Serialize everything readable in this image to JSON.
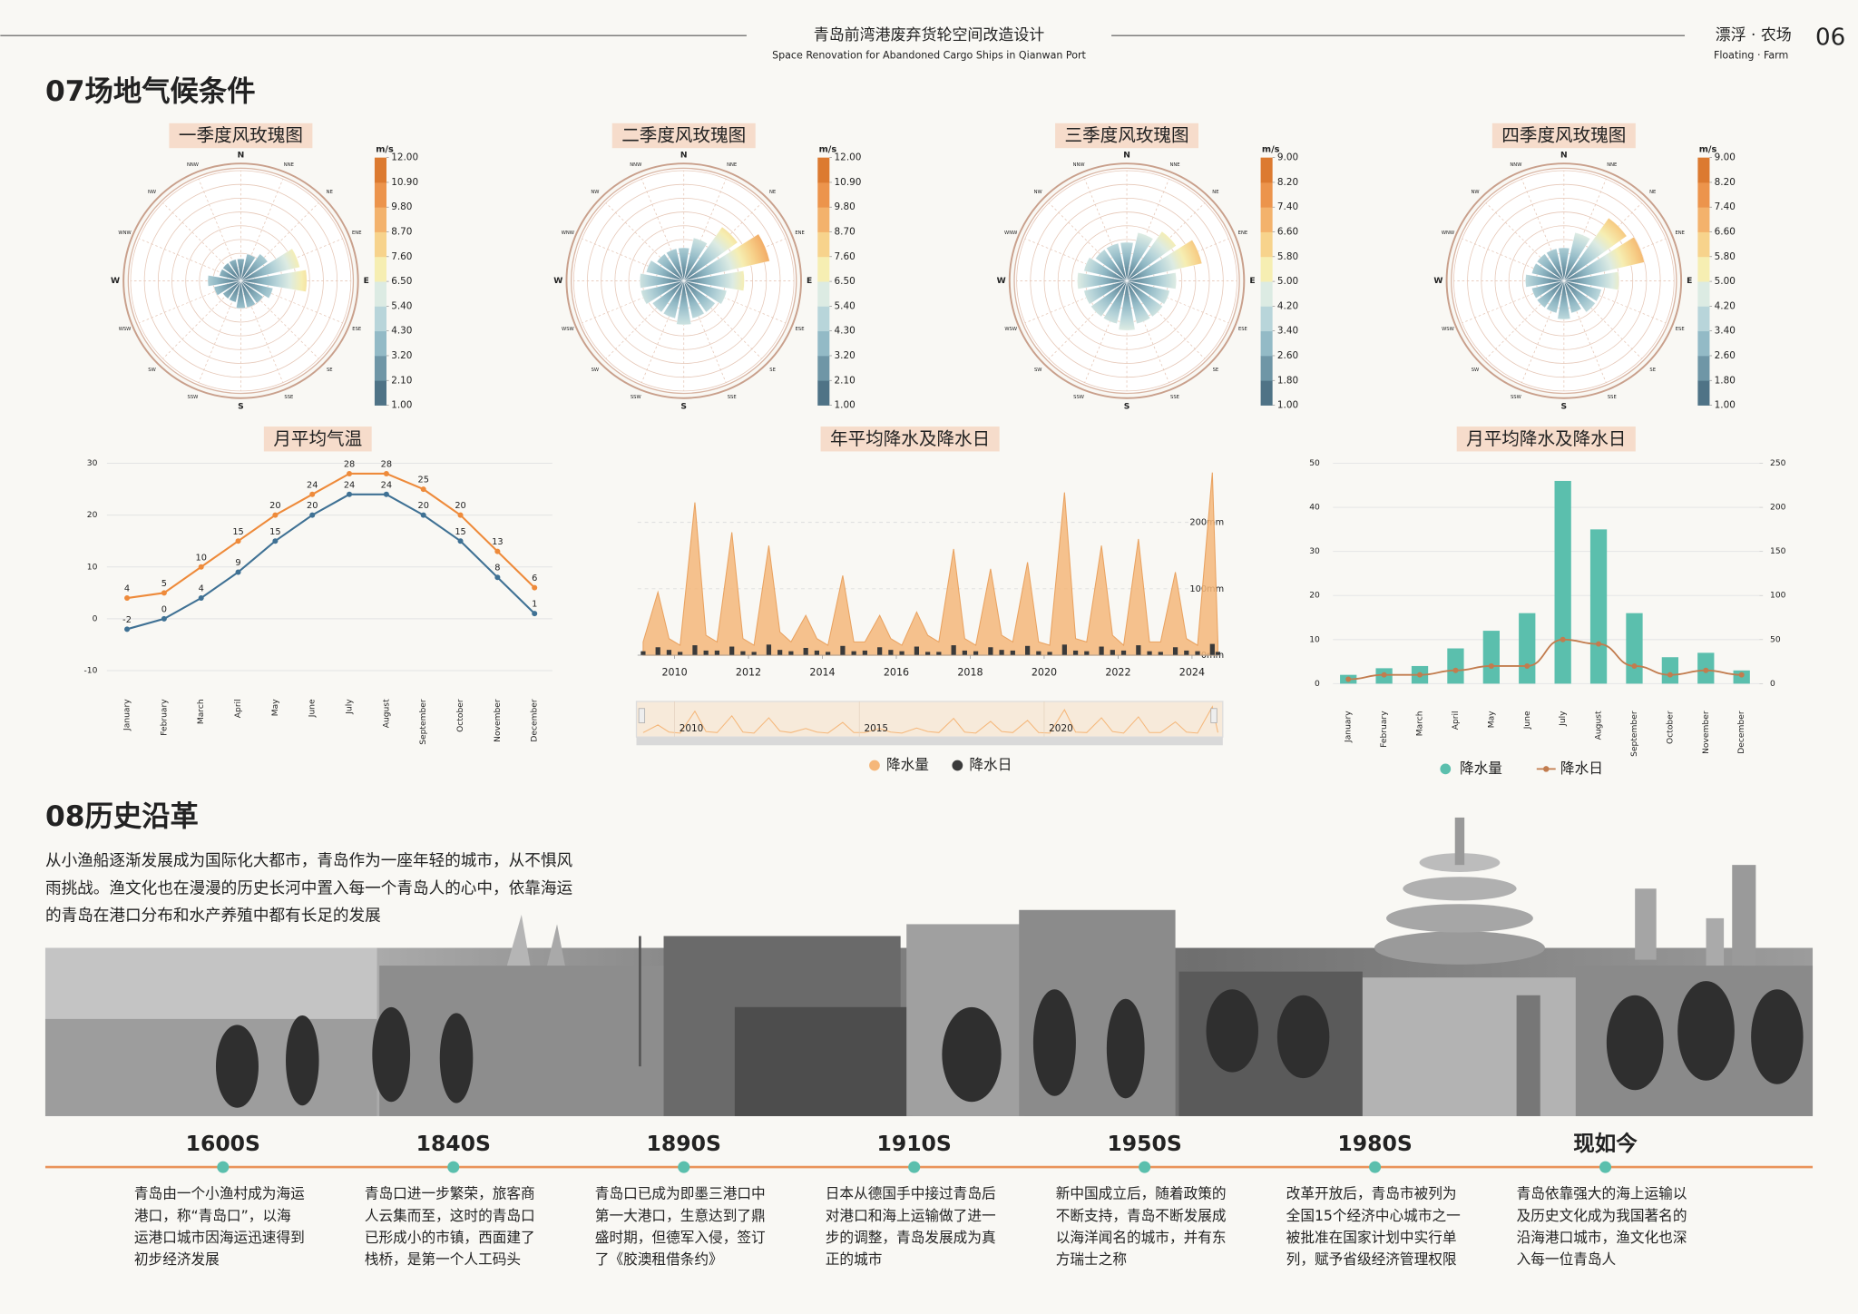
{
  "header": {
    "title": "青岛前湾港废弃货轮空间改造设计",
    "subtitle": "Space Renovation for Abandoned Cargo Ships in Qianwan Port",
    "theme": "漂浮 · 农场",
    "theme_en": "Floating · Farm",
    "page": "06"
  },
  "climate": {
    "title": "07场地气候条件"
  },
  "chart_data": [
    {
      "type": "wind_rose",
      "title": "一季度风玫瑰图",
      "categories": [
        "N",
        "NNE",
        "NE",
        "ENE",
        "E",
        "ESE",
        "SE",
        "SSE",
        "S",
        "SSW",
        "SW",
        "WSW",
        "W",
        "WNW",
        "NW",
        "NNW"
      ],
      "values": [
        2,
        2.5,
        3,
        5.5,
        6,
        3,
        2.5,
        2.5,
        2.5,
        2,
        2,
        2.5,
        3,
        2,
        2,
        2
      ],
      "rlim": [
        0,
        10
      ],
      "colorbar": {
        "unit": "m/s",
        "colors": [
          "#4f7386",
          "#6f96a6",
          "#93bac6",
          "#b8d5da",
          "#dcebe3",
          "#f6eeb2",
          "#f7d38c",
          "#f3b26c",
          "#ec944c",
          "#dc7a30"
        ],
        "ticks": [
          {
            "value": 1,
            "label": "1.00"
          },
          {
            "value": 2.1,
            "label": "2.10"
          },
          {
            "value": 3.2,
            "label": "3.20"
          },
          {
            "value": 4.3,
            "label": "4.30"
          },
          {
            "value": 5.4,
            "label": "5.40"
          },
          {
            "value": 6.5,
            "label": "6.50"
          },
          {
            "value": 7.6,
            "label": "7.60"
          },
          {
            "value": 8.7,
            "label": "8.70"
          },
          {
            "value": 9.8,
            "label": "9.80"
          },
          {
            "value": 10.9,
            "label": "10.90"
          },
          {
            "value": 12,
            "label": "12.00"
          }
        ]
      }
    },
    {
      "type": "wind_rose",
      "title": "二季度风玫瑰图",
      "categories": [
        "N",
        "NNE",
        "NE",
        "ENE",
        "E",
        "ESE",
        "SE",
        "SSE",
        "S",
        "SSW",
        "SW",
        "WSW",
        "W",
        "WNW",
        "NW",
        "NNW"
      ],
      "values": [
        3,
        4,
        6,
        8,
        5.5,
        4,
        3.5,
        3.5,
        4,
        3.5,
        3.5,
        4,
        4,
        3.5,
        3,
        3
      ],
      "rlim": [
        0,
        10
      ],
      "colorbar": {
        "unit": "m/s",
        "colors": [
          "#4f7386",
          "#6f96a6",
          "#93bac6",
          "#b8d5da",
          "#dcebe3",
          "#f6eeb2",
          "#f7d38c",
          "#f3b26c",
          "#ec944c",
          "#dc7a30"
        ],
        "ticks": [
          {
            "value": 1,
            "label": "1.00"
          },
          {
            "value": 2.1,
            "label": "2.10"
          },
          {
            "value": 3.2,
            "label": "3.20"
          },
          {
            "value": 4.3,
            "label": "4.30"
          },
          {
            "value": 5.4,
            "label": "5.40"
          },
          {
            "value": 6.5,
            "label": "6.50"
          },
          {
            "value": 7.6,
            "label": "7.60"
          },
          {
            "value": 8.7,
            "label": "8.70"
          },
          {
            "value": 9.8,
            "label": "9.80"
          },
          {
            "value": 10.9,
            "label": "10.90"
          },
          {
            "value": 12,
            "label": "12.00"
          }
        ]
      }
    },
    {
      "type": "wind_rose",
      "title": "三季度风玫瑰图",
      "categories": [
        "N",
        "NNE",
        "NE",
        "ENE",
        "E",
        "ESE",
        "SE",
        "SSE",
        "S",
        "SSW",
        "SW",
        "WSW",
        "W",
        "WNW",
        "NW",
        "NNW"
      ],
      "values": [
        3.5,
        4.5,
        5.5,
        7,
        4.5,
        4,
        4,
        4,
        4.5,
        4,
        4,
        4,
        4.5,
        4,
        3.5,
        3.5
      ],
      "rlim": [
        0,
        10
      ],
      "colorbar": {
        "unit": "m/s",
        "colors": [
          "#4f7386",
          "#6f96a6",
          "#93bac6",
          "#b8d5da",
          "#dcebe3",
          "#f6eeb2",
          "#f7d38c",
          "#f3b26c",
          "#ec944c",
          "#dc7a30"
        ],
        "ticks": [
          {
            "value": 1,
            "label": "1.00"
          },
          {
            "value": 1.8,
            "label": "1.80"
          },
          {
            "value": 2.6,
            "label": "2.60"
          },
          {
            "value": 3.4,
            "label": "3.40"
          },
          {
            "value": 4.2,
            "label": "4.20"
          },
          {
            "value": 5,
            "label": "5.00"
          },
          {
            "value": 5.8,
            "label": "5.80"
          },
          {
            "value": 6.6,
            "label": "6.60"
          },
          {
            "value": 7.4,
            "label": "7.40"
          },
          {
            "value": 8.2,
            "label": "8.20"
          },
          {
            "value": 9,
            "label": "9.00"
          }
        ]
      }
    },
    {
      "type": "wind_rose",
      "title": "四季度风玫瑰图",
      "categories": [
        "N",
        "NNE",
        "NE",
        "ENE",
        "E",
        "ESE",
        "SE",
        "SSE",
        "S",
        "SSW",
        "SW",
        "WSW",
        "W",
        "WNW",
        "NW",
        "NNW"
      ],
      "values": [
        3,
        4.5,
        7,
        7.5,
        5,
        3.5,
        3.5,
        3,
        3.5,
        3,
        3,
        3,
        3.5,
        3,
        3,
        3
      ],
      "rlim": [
        0,
        10
      ],
      "colorbar": {
        "unit": "m/s",
        "colors": [
          "#4f7386",
          "#6f96a6",
          "#93bac6",
          "#b8d5da",
          "#dcebe3",
          "#f6eeb2",
          "#f7d38c",
          "#f3b26c",
          "#ec944c",
          "#dc7a30"
        ],
        "ticks": [
          {
            "value": 1,
            "label": "1.00"
          },
          {
            "value": 1.8,
            "label": "1.80"
          },
          {
            "value": 2.6,
            "label": "2.60"
          },
          {
            "value": 3.4,
            "label": "3.40"
          },
          {
            "value": 4.2,
            "label": "4.20"
          },
          {
            "value": 5,
            "label": "5.00"
          },
          {
            "value": 5.8,
            "label": "5.80"
          },
          {
            "value": 6.6,
            "label": "6.60"
          },
          {
            "value": 7.4,
            "label": "7.40"
          },
          {
            "value": 8.2,
            "label": "8.20"
          },
          {
            "value": 9,
            "label": "9.00"
          }
        ]
      }
    },
    {
      "type": "line",
      "title": "月平均气温",
      "categories": [
        "January",
        "February",
        "March",
        "April",
        "May",
        "June",
        "July",
        "August",
        "September",
        "October",
        "November",
        "December"
      ],
      "series": [
        {
          "color": "#ee8a3a",
          "values": [
            4,
            5,
            10,
            15,
            20,
            24,
            28,
            28,
            25,
            20,
            13,
            6
          ]
        },
        {
          "color": "#3f7194",
          "values": [
            -2,
            0,
            4,
            9,
            15,
            20,
            24,
            24,
            20,
            15,
            8,
            1
          ]
        }
      ],
      "ylim": [
        -10,
        30
      ],
      "yticks": [
        -10,
        0,
        10,
        20,
        30
      ],
      "grid": true
    },
    {
      "type": "area",
      "title": "年平均降水及降水日",
      "x": [
        2009.15,
        2009.55,
        2009.85,
        2010.15,
        2010.55,
        2010.85,
        2011.15,
        2011.55,
        2011.85,
        2012.15,
        2012.55,
        2012.85,
        2013.15,
        2013.55,
        2013.85,
        2014.15,
        2014.55,
        2014.85,
        2015.15,
        2015.55,
        2015.85,
        2016.15,
        2016.55,
        2016.85,
        2017.15,
        2017.55,
        2017.85,
        2018.15,
        2018.55,
        2018.85,
        2019.15,
        2019.55,
        2019.85,
        2020.15,
        2020.55,
        2020.85,
        2021.15,
        2021.55,
        2021.85,
        2022.15,
        2022.55,
        2022.85,
        2023.15,
        2023.55,
        2023.85,
        2024.15,
        2024.55,
        2024.7
      ],
      "series": [
        {
          "name": "降水量",
          "type": "area",
          "color": "#f5b77a",
          "values": [
            20,
            95,
            25,
            15,
            230,
            30,
            20,
            185,
            25,
            15,
            165,
            35,
            20,
            60,
            25,
            15,
            120,
            20,
            20,
            60,
            25,
            15,
            65,
            30,
            20,
            160,
            25,
            15,
            130,
            30,
            20,
            140,
            20,
            15,
            245,
            25,
            20,
            165,
            30,
            15,
            175,
            20,
            20,
            125,
            25,
            15,
            275,
            20
          ]
        },
        {
          "name": "降水日",
          "type": "bar",
          "color": "#3a3a3a",
          "values": [
            6,
            12,
            8,
            5,
            15,
            7,
            7,
            13,
            6,
            5,
            16,
            8,
            6,
            11,
            7,
            5,
            14,
            6,
            7,
            12,
            8,
            6,
            13,
            5,
            5,
            15,
            7,
            6,
            12,
            8,
            7,
            14,
            6,
            5,
            16,
            7,
            6,
            13,
            8,
            7,
            15,
            6,
            5,
            12,
            7,
            6,
            17,
            5
          ]
        }
      ],
      "xlim": [
        2009,
        2024.8
      ],
      "xticks": [
        2010,
        2012,
        2014,
        2016,
        2018,
        2020,
        2022,
        2024
      ],
      "ylim": [
        0,
        280
      ],
      "yticks": [
        {
          "value": 0,
          "label": "0mm"
        },
        {
          "value": 100,
          "label": "100mm"
        },
        {
          "value": 200,
          "label": "200mm"
        }
      ],
      "slider_ticks": [
        2010,
        2015,
        2020
      ],
      "legend": "bottom"
    },
    {
      "type": "combo",
      "title": "月平均降水及降水日",
      "categories": [
        "January",
        "February",
        "March",
        "April",
        "May",
        "June",
        "July",
        "August",
        "September",
        "October",
        "November",
        "December"
      ],
      "series": [
        {
          "name": "降水量",
          "type": "bar",
          "color": "#5bbfad",
          "values": [
            2,
            3.5,
            4,
            8,
            12,
            16,
            46,
            35,
            16,
            6,
            7,
            3
          ]
        },
        {
          "name": "降水日",
          "type": "line",
          "axis": "y2",
          "color": "#c27c4e",
          "values": [
            5,
            10,
            10,
            15,
            20,
            20,
            50,
            45,
            20,
            10,
            15,
            10
          ]
        }
      ],
      "ylim": [
        0,
        50
      ],
      "yticks": [
        0,
        10,
        20,
        30,
        40,
        50
      ],
      "y2lim": [
        0,
        250
      ],
      "y2ticks": [
        0,
        50,
        100,
        150,
        200,
        250
      ],
      "grid": true,
      "legend": "bottom"
    }
  ],
  "history": {
    "title": "08历史沿革",
    "intro": [
      "从小渔船逐渐发展成为国际化大都市，青岛作为一座年轻的城市，从不惧风",
      "雨挑战。渔文化也在漫漫的历史长河中置入每一个青岛人的心中，依靠海运",
      "的青岛在港口分布和水产养殖中都有长足的发展"
    ],
    "timeline": [
      {
        "era": "1600S",
        "text": [
          "青岛由一个小渔村成为海运",
          "港口，称“青岛口”，以海",
          "运港口城市因海运迅速得到",
          "初步经济发展"
        ]
      },
      {
        "era": "1840S",
        "text": [
          "青岛口进一步繁荣，旅客商",
          "人云集而至，这时的青岛口",
          "已形成小的市镇，西面建了",
          "栈桥，是第一个人工码头"
        ]
      },
      {
        "era": "1890S",
        "text": [
          "青岛口已成为即墨三港口中",
          "第一大港口，生意达到了鼎",
          "盛时期，但德军入侵，签订",
          "了《胶澳租借条约》"
        ]
      },
      {
        "era": "1910S",
        "text": [
          "日本从德国手中接过青岛后",
          "对港口和海上运输做了进一",
          "步的调整，青岛发展成为真",
          "正的城市"
        ]
      },
      {
        "era": "1950S",
        "text": [
          "新中国成立后，随着政策的",
          "不断支持，青岛不断发展成",
          "以海洋闻名的城市，并有东",
          "方瑞士之称"
        ]
      },
      {
        "era": "1980S",
        "text": [
          "改革开放后，青岛市被列为",
          "全国15个经济中心城市之一",
          "被批准在国家计划中实行单",
          "列，赋予省级经济管理权限"
        ]
      },
      {
        "era": "现如今",
        "text": [
          "青岛依靠强大的海上运输以",
          "及历史文化成为我国著名的",
          "沿海港口城市，渔文化也深",
          "入每一位青岛人"
        ]
      }
    ]
  }
}
